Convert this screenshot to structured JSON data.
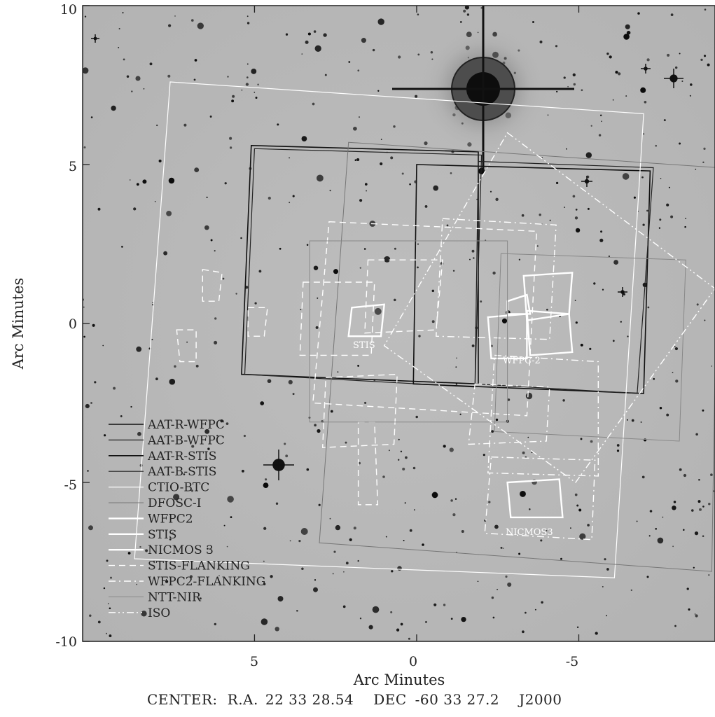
{
  "chart_data": {
    "type": "scatter",
    "title": "",
    "xlabel": "Arc Minutes",
    "ylabel": "Arc Minutes",
    "xlim": [
      10.3,
      -9.2
    ],
    "ylim": [
      -10,
      10
    ],
    "x_ticks": [
      {
        "value": 5,
        "label": "5"
      },
      {
        "value": 0,
        "label": "0"
      },
      {
        "value": -5,
        "label": "-5"
      }
    ],
    "y_ticks": [
      {
        "value": 10,
        "label": "10"
      },
      {
        "value": 5,
        "label": "5"
      },
      {
        "value": 0,
        "label": "0"
      },
      {
        "value": -5,
        "label": "-5"
      },
      {
        "value": -10,
        "label": "-10"
      }
    ],
    "background": "grayscale sky survey image with stars",
    "center": {
      "label": "CENTER:",
      "ra_label": "R.A.",
      "ra": "22 33 28.54",
      "dec_label": "DEC",
      "dec": "-60 33 27.2",
      "epoch": "J2000"
    },
    "legend_position": "lower-left",
    "series": [
      {
        "name": "AAT-R-WFPC",
        "color": "#111111",
        "style": "solid",
        "width": 1.6,
        "shapes": [
          [
            [
              5.1,
              5.6
            ],
            [
              -1.9,
              5.4
            ],
            [
              -1.9,
              -1.9
            ],
            [
              5.4,
              -1.6
            ]
          ]
        ]
      },
      {
        "name": "AAT-B-WFPC",
        "color": "#222222",
        "style": "solid",
        "width": 1.2,
        "shapes": [
          [
            [
              5,
              5.5
            ],
            [
              -2,
              5.3
            ],
            [
              -1.8,
              -2
            ],
            [
              5.3,
              -1.6
            ]
          ]
        ]
      },
      {
        "name": "AAT-R-STIS",
        "color": "#111111",
        "style": "solid",
        "width": 1.6,
        "shapes": [
          [
            [
              0,
              5
            ],
            [
              -7.2,
              4.8
            ],
            [
              -7,
              -2.2
            ],
            [
              0.1,
              -1.9
            ]
          ]
        ]
      },
      {
        "name": "AAT-B-STIS",
        "color": "#222222",
        "style": "solid",
        "width": 1.2,
        "shapes": [
          [
            [
              -1.9,
              5.1
            ],
            [
              -7.3,
              4.9
            ],
            [
              -6.8,
              -2.2
            ],
            [
              -1.8,
              -1.9
            ]
          ]
        ]
      },
      {
        "name": "CTIO-BTC",
        "color": "#ffffff",
        "style": "solid",
        "width": 1.2,
        "shapes": [
          [
            [
              7.6,
              7.6
            ],
            [
              -7,
              6.6
            ],
            [
              -6.1,
              -8
            ],
            [
              8.7,
              -7.4
            ]
          ]
        ]
      },
      {
        "name": "DFOSC-I",
        "color": "#777777",
        "style": "solid",
        "width": 1,
        "shapes": [
          [
            [
              2.1,
              5.7
            ],
            [
              -9.3,
              4.9
            ],
            [
              -9.1,
              -7.8
            ],
            [
              3,
              -6.9
            ]
          ]
        ]
      },
      {
        "name": "WFPC2",
        "color": "#ffffff",
        "style": "solid",
        "width": 2.4,
        "shapes": [
          [
            [
              -3.3,
              1.5
            ],
            [
              -4.8,
              1.6
            ],
            [
              -4.7,
              0.3
            ],
            [
              -3.4,
              0.1
            ]
          ],
          [
            [
              -3.4,
              0.4
            ],
            [
              -4.7,
              0.3
            ],
            [
              -4.8,
              -0.9
            ],
            [
              -3.5,
              -1
            ]
          ],
          [
            [
              -2.2,
              0.2
            ],
            [
              -3.4,
              0.3
            ],
            [
              -3.4,
              -1.1
            ],
            [
              -2.3,
              -1.1
            ]
          ],
          [
            [
              -2.8,
              0.7
            ],
            [
              -3.4,
              0.9
            ],
            [
              -3.5,
              0.3
            ],
            [
              -2.8,
              0.3
            ]
          ]
        ]
      },
      {
        "name": "STIS",
        "color": "#ffffff",
        "style": "solid",
        "width": 2.4,
        "shapes": [
          [
            [
              2,
              0.5
            ],
            [
              1,
              0.6
            ],
            [
              1.1,
              -0.4
            ],
            [
              2.1,
              -0.4
            ]
          ]
        ]
      },
      {
        "name": "NICMOS 3",
        "color": "#ffffff",
        "style": "solid",
        "width": 2.4,
        "shapes": [
          [
            [
              -2.8,
              -5
            ],
            [
              -4.4,
              -4.9
            ],
            [
              -4.5,
              -6.1
            ],
            [
              -2.9,
              -6.1
            ]
          ]
        ]
      },
      {
        "name": "STIS-FLANKING",
        "color": "#ffffff",
        "style": "dashed",
        "width": 1.4,
        "shapes": [
          [
            [
              2.7,
              3.2
            ],
            [
              -3.7,
              2.9
            ],
            [
              -3.4,
              -2.9
            ],
            [
              3.2,
              -2.5
            ]
          ],
          [
            [
              1.5,
              2.0
            ],
            [
              -0.8,
              2.0
            ],
            [
              -0.6,
              -0.2
            ],
            [
              1.6,
              -0.3
            ]
          ],
          [
            [
              3.5,
              1.3
            ],
            [
              1.3,
              1.3
            ],
            [
              1.4,
              -1.0
            ],
            [
              3.6,
              -1.0
            ]
          ],
          [
            [
              2.8,
              -1.7
            ],
            [
              0.6,
              -1.6
            ],
            [
              0.7,
              -3.8
            ],
            [
              2.9,
              -3.9
            ]
          ],
          [
            [
              1.8,
              -3.1
            ],
            [
              1.3,
              -3.1
            ],
            [
              1.2,
              -5.7
            ],
            [
              1.8,
              -5.7
            ]
          ],
          [
            [
              6.6,
              1.7
            ],
            [
              6.0,
              1.6
            ],
            [
              6.1,
              0.7
            ],
            [
              6.6,
              0.7
            ]
          ],
          [
            [
              5.2,
              0.5
            ],
            [
              4.6,
              0.5
            ],
            [
              4.7,
              -0.4
            ],
            [
              5.2,
              -0.4
            ]
          ],
          [
            [
              7.4,
              -0.2
            ],
            [
              6.8,
              -0.2
            ],
            [
              6.8,
              -1.2
            ],
            [
              7.3,
              -1.2
            ]
          ]
        ]
      },
      {
        "name": "WFPC2-FLANKING",
        "color": "#ffffff",
        "style": "dashdot",
        "width": 1.4,
        "shapes": [
          [
            [
              -0.8,
              3.3
            ],
            [
              -4.3,
              3.1
            ],
            [
              -4.1,
              -0.5
            ],
            [
              -0.6,
              -0.4
            ]
          ],
          [
            [
              -2.4,
              -1.0
            ],
            [
              -5.6,
              -1.2
            ],
            [
              -5.6,
              -4.8
            ],
            [
              -2.2,
              -4.7
            ]
          ],
          [
            [
              -1.8,
              -1.9
            ],
            [
              -4.1,
              -2.0
            ],
            [
              -4.0,
              -3.7
            ],
            [
              -1.6,
              -3.8
            ]
          ],
          [
            [
              -2.3,
              -4.2
            ],
            [
              -5.5,
              -4.3
            ],
            [
              -5.4,
              -6.8
            ],
            [
              -2.1,
              -6.6
            ]
          ]
        ]
      },
      {
        "name": "NTT-NIR",
        "color": "#888888",
        "style": "solid",
        "width": 1,
        "shapes": [
          [
            [
              3.3,
              2.6
            ],
            [
              -2.8,
              2.6
            ],
            [
              -2.8,
              -3.1
            ],
            [
              3.3,
              -3.1
            ]
          ],
          [
            [
              -2.6,
              2.2
            ],
            [
              -8.3,
              2.0
            ],
            [
              -8.1,
              -3.7
            ],
            [
              -2.4,
              -3.4
            ]
          ]
        ]
      },
      {
        "name": "ISO",
        "color": "#ffffff",
        "style": "dashdotdot",
        "width": 1.4,
        "shapes": [
          [
            [
              -2.8,
              6.0
            ],
            [
              -9.2,
              1.1
            ],
            [
              -4.9,
              -5.0
            ],
            [
              1.0,
              -0.7
            ]
          ]
        ]
      }
    ],
    "annotations": [
      {
        "text": "STIS",
        "x": 1.45,
        "y": -0.78
      },
      {
        "text": "WFPC-2",
        "x": -3.9,
        "y": -1.32
      },
      {
        "text": "NICMOS3",
        "x": -3.45,
        "y": -6.45
      }
    ]
  }
}
